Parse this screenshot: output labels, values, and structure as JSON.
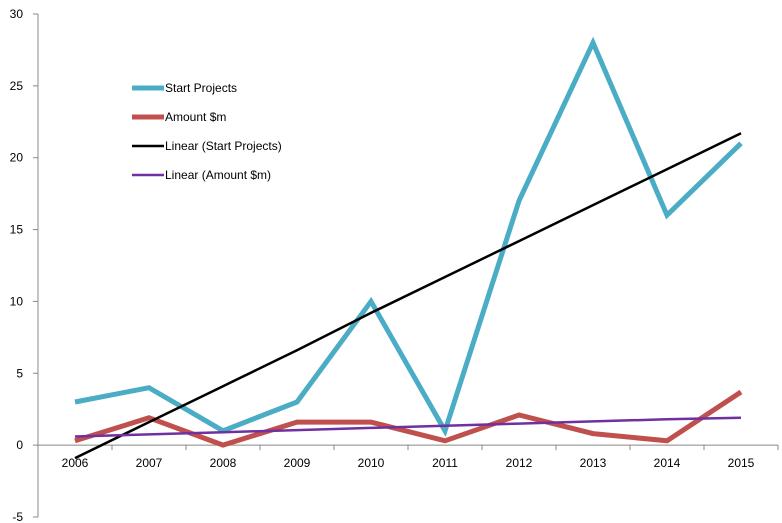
{
  "chart_data": {
    "type": "line",
    "title": "",
    "xlabel": "",
    "ylabel": "",
    "ylim": [
      -5,
      30
    ],
    "y_ticks": [
      -5,
      0,
      5,
      10,
      15,
      20,
      25,
      30
    ],
    "categories": [
      "2006",
      "2007",
      "2008",
      "2009",
      "2010",
      "2011",
      "2012",
      "2013",
      "2014",
      "2015"
    ],
    "legend_position": "upper-left",
    "grid": false,
    "series": [
      {
        "name": "Start Projects",
        "color": "#4bacc6",
        "style": "thick",
        "values": [
          3,
          4,
          1,
          3,
          10,
          1,
          17,
          28,
          16,
          21
        ]
      },
      {
        "name": "Amount $m",
        "color": "#c0504d",
        "style": "thick",
        "values": [
          0.3,
          1.9,
          0.0,
          1.6,
          1.6,
          0.3,
          2.1,
          0.8,
          0.3,
          3.7
        ]
      },
      {
        "name": "Linear (Start Projects)",
        "color": "#000000",
        "style": "trend",
        "values": [
          -0.9,
          1.6,
          4.1,
          6.6,
          9.2,
          11.7,
          14.2,
          16.7,
          19.2,
          21.7
        ]
      },
      {
        "name": "Linear (Amount $m)",
        "color": "#7030a0",
        "style": "trend",
        "values": [
          0.6,
          0.75,
          0.9,
          1.05,
          1.2,
          1.35,
          1.5,
          1.65,
          1.8,
          1.9
        ]
      }
    ]
  }
}
